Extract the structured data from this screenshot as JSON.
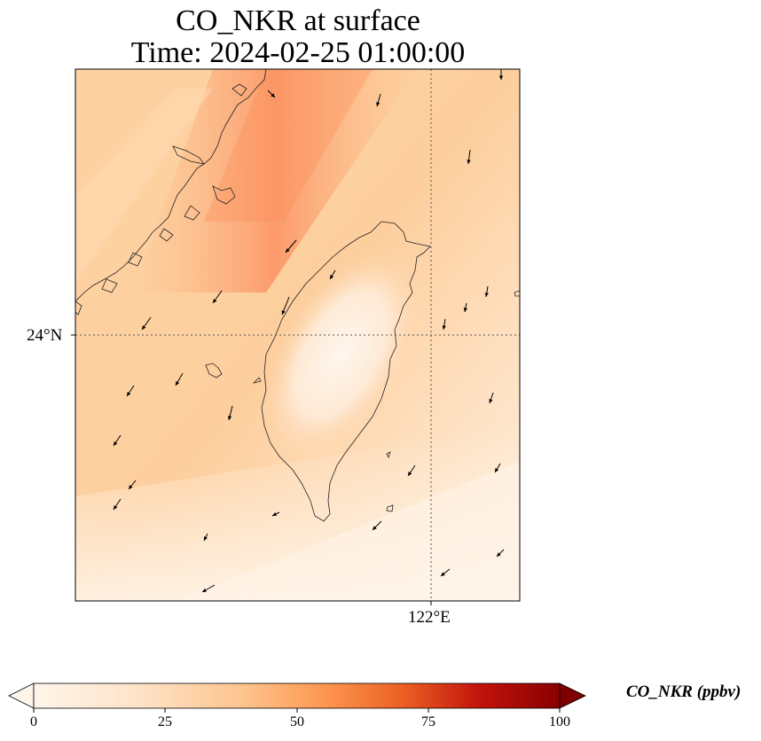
{
  "title": {
    "line1": "CO_NKR at surface",
    "line2": "Time: 2024-02-25 01:00:00"
  },
  "axes": {
    "lat_tick": "24°N",
    "lon_tick": "122°E",
    "gridlines": "dotted",
    "lat_range": [
      21.8,
      26.7
    ],
    "lon_range": [
      118.6,
      122.9
    ]
  },
  "colorbar": {
    "label": "CO_NKR (ppbv)",
    "colormap": "Oranges",
    "ticks": [
      "0",
      "25",
      "50",
      "75",
      "100"
    ],
    "range": [
      0,
      100
    ],
    "extend": "both",
    "colors": [
      "#fff5eb",
      "#fdd9b4",
      "#fdae6b",
      "#f3702a",
      "#c3000b",
      "#7f0000"
    ]
  },
  "field_colors": {
    "background_light": "#fde1c0",
    "plume_peak": "#fb8a5c",
    "island_min": "#fff6ec",
    "south_light": "#fff0e0"
  },
  "wind_vectors_note_free": true
}
